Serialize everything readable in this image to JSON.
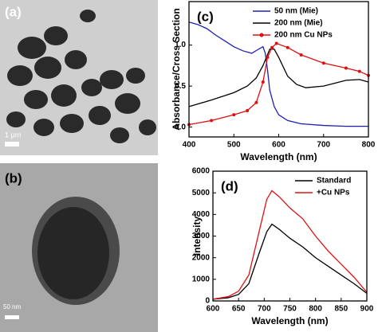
{
  "images": [
    {
      "label": "(a)",
      "scale_bar": "1 μm"
    },
    {
      "label": "(b)",
      "scale_bar": "50 nm"
    }
  ],
  "chart_data": [
    {
      "type": "line",
      "panel_label": "(c)",
      "x_label": "Wavelength (nm)",
      "y_label": "Absorbance/Cross Section",
      "xlim": [
        400,
        800
      ],
      "xticks": [
        400,
        500,
        600,
        700,
        800
      ],
      "ylim": [
        -0.12,
        1.53
      ],
      "yticks": [
        {
          "value": 0,
          "label": "0.0"
        },
        0.5,
        {
          "value": 1,
          "label": "1.0"
        }
      ],
      "legend": "upper center",
      "series": [
        {
          "name": "50 nm (Mie)",
          "color": "#1f1fb4",
          "markers": false,
          "x": [
            400,
            420,
            440,
            460,
            480,
            500,
            520,
            540,
            555,
            565,
            570,
            575,
            580,
            590,
            600,
            620,
            650,
            700,
            750,
            800
          ],
          "values": [
            1.28,
            1.25,
            1.2,
            1.12,
            1.05,
            0.98,
            0.93,
            0.9,
            0.95,
            0.98,
            0.9,
            0.7,
            0.45,
            0.25,
            0.15,
            0.08,
            0.04,
            0.02,
            0.01,
            0.01
          ]
        },
        {
          "name": "200 nm (Mie)",
          "color": "#000000",
          "markers": false,
          "x": [
            400,
            450,
            500,
            530,
            550,
            565,
            580,
            590,
            600,
            620,
            640,
            660,
            700,
            750,
            780,
            800
          ],
          "values": [
            0.25,
            0.33,
            0.42,
            0.5,
            0.6,
            0.75,
            0.95,
            0.95,
            0.85,
            0.62,
            0.52,
            0.48,
            0.5,
            0.57,
            0.58,
            0.55
          ]
        },
        {
          "name": "200 nm Cu NPs",
          "color": "#e01010",
          "markers": true,
          "x": [
            400,
            450,
            500,
            530,
            550,
            565,
            575,
            585,
            595,
            620,
            650,
            700,
            750,
            780,
            800
          ],
          "values": [
            0.03,
            0.08,
            0.15,
            0.2,
            0.3,
            0.55,
            0.85,
            0.97,
            1.02,
            0.97,
            0.88,
            0.78,
            0.72,
            0.68,
            0.63
          ]
        }
      ]
    },
    {
      "type": "line",
      "panel_label": "(d)",
      "x_label": "Wavelength (nm)",
      "y_label": "Intensity",
      "xlim": [
        600,
        900
      ],
      "xticks": [
        600,
        650,
        700,
        750,
        800,
        850,
        900
      ],
      "ylim": [
        0,
        6000
      ],
      "yticks": [
        0,
        1000,
        2000,
        3000,
        4000,
        5000,
        6000
      ],
      "legend": "upper right",
      "series": [
        {
          "name": "Standard",
          "color": "#000000",
          "markers": false,
          "x": [
            600,
            630,
            650,
            670,
            690,
            705,
            715,
            730,
            750,
            775,
            800,
            825,
            850,
            875,
            900
          ],
          "values": [
            80,
            150,
            300,
            800,
            2200,
            3200,
            3550,
            3300,
            2900,
            2500,
            2000,
            1600,
            1200,
            800,
            350
          ]
        },
        {
          "name": "+Cu NPs",
          "color": "#e01010",
          "markers": false,
          "x": [
            600,
            630,
            650,
            670,
            690,
            705,
            715,
            730,
            750,
            775,
            800,
            825,
            850,
            875,
            900
          ],
          "values": [
            80,
            200,
            450,
            1200,
            3200,
            4700,
            5100,
            4800,
            4300,
            3800,
            3000,
            2300,
            1700,
            1100,
            400
          ]
        }
      ]
    }
  ]
}
